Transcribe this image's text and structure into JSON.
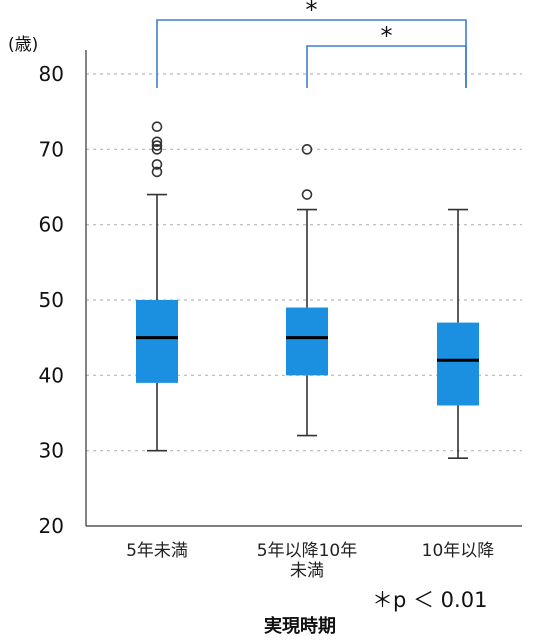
{
  "chart_data": {
    "type": "box",
    "unit_label": "(歳)",
    "xlabel": "実現時期",
    "ylabel": "",
    "ylim": [
      20,
      80
    ],
    "yticks": [
      20,
      30,
      40,
      50,
      60,
      70,
      80
    ],
    "grid": true,
    "box_color": "#1b8fe0",
    "bracket_color": "#3f7fd0",
    "categories": [
      {
        "label_lines": [
          "5年未満"
        ],
        "min": 30,
        "q1": 39,
        "median": 45,
        "q3": 50,
        "max": 64,
        "outliers": [
          67,
          68,
          70,
          70.5,
          71,
          73
        ]
      },
      {
        "label_lines": [
          "5年以降10年",
          "未満"
        ],
        "min": 32,
        "q1": 40,
        "median": 45,
        "q3": 49,
        "max": 62,
        "outliers": [
          64,
          70
        ]
      },
      {
        "label_lines": [
          "10年以降"
        ],
        "min": 29,
        "q1": 36,
        "median": 42,
        "q3": 47,
        "max": 62,
        "outliers": []
      }
    ],
    "significance": [
      {
        "from": 0,
        "to": 2,
        "mark": "*"
      },
      {
        "from": 1,
        "to": 2,
        "mark": "*"
      }
    ],
    "note": "＊p ＜ 0.01"
  }
}
